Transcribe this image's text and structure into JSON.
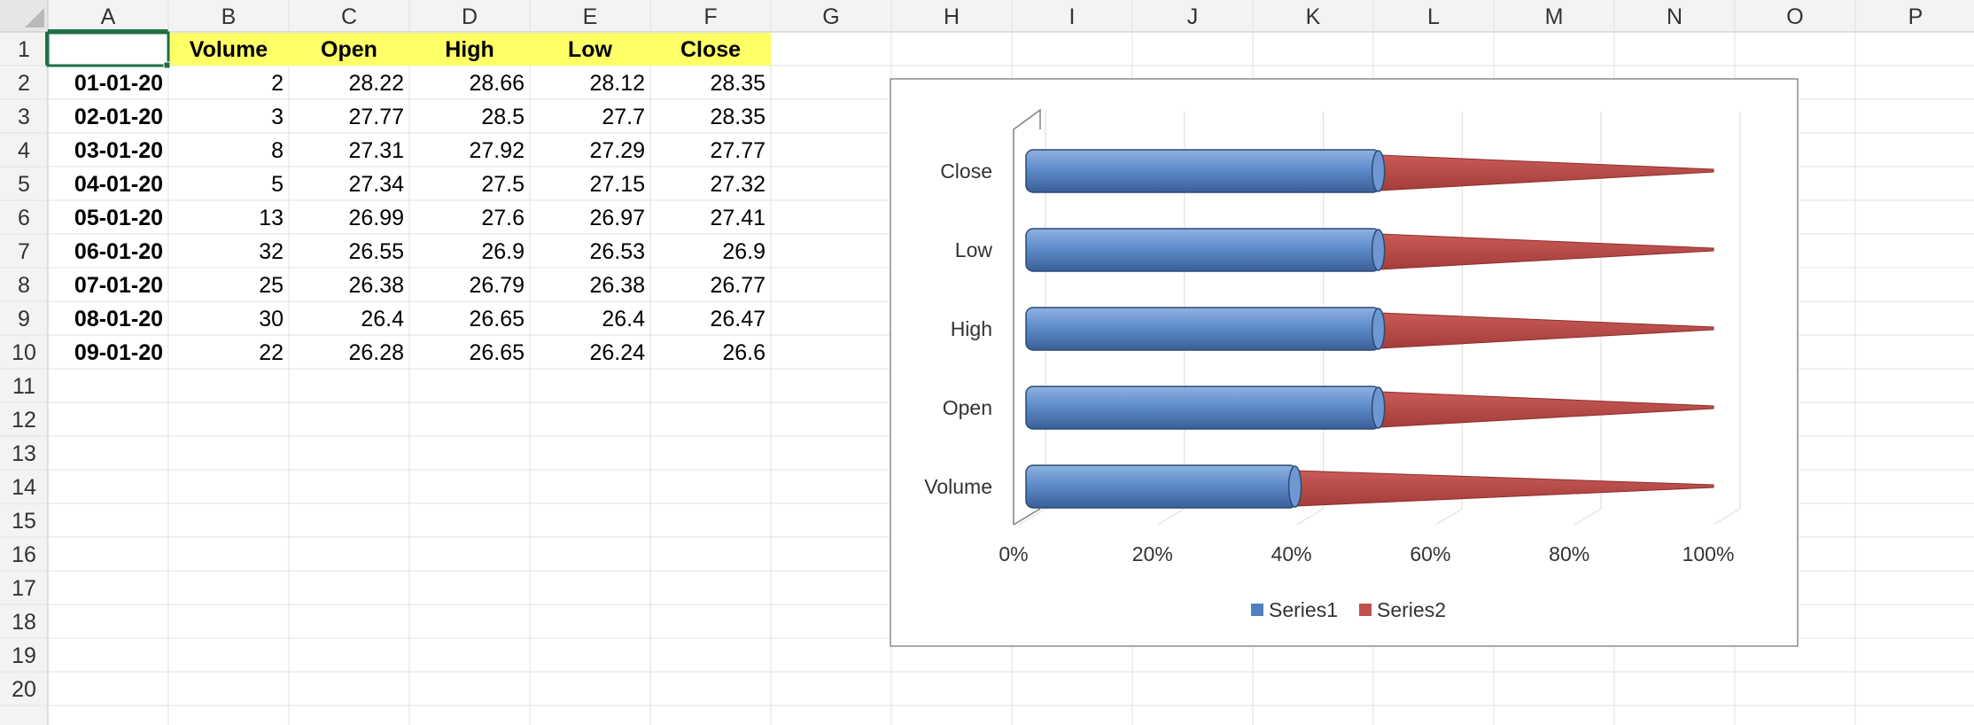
{
  "columns": [
    "A",
    "B",
    "C",
    "D",
    "E",
    "F",
    "G",
    "H",
    "I",
    "J",
    "K",
    "L",
    "M",
    "N",
    "O",
    "P"
  ],
  "rows": [
    "1",
    "2",
    "3",
    "4",
    "5",
    "6",
    "7",
    "8",
    "9",
    "10",
    "11",
    "12",
    "13",
    "14",
    "15",
    "16",
    "17",
    "18",
    "19",
    "20"
  ],
  "active_cell": "A1",
  "headers": [
    "",
    "Volume",
    "Open",
    "High",
    "Low",
    "Close"
  ],
  "header_fill": "#ffff66",
  "table": [
    [
      "01-01-20",
      "2",
      "28.22",
      "28.66",
      "28.12",
      "28.35"
    ],
    [
      "02-01-20",
      "3",
      "27.77",
      "28.5",
      "27.7",
      "28.35"
    ],
    [
      "03-01-20",
      "8",
      "27.31",
      "27.92",
      "27.29",
      "27.77"
    ],
    [
      "04-01-20",
      "5",
      "27.34",
      "27.5",
      "27.15",
      "27.32"
    ],
    [
      "05-01-20",
      "13",
      "26.99",
      "27.6",
      "26.97",
      "27.41"
    ],
    [
      "06-01-20",
      "32",
      "26.55",
      "26.9",
      "26.53",
      "26.9"
    ],
    [
      "07-01-20",
      "25",
      "26.38",
      "26.79",
      "26.38",
      "26.77"
    ],
    [
      "08-01-20",
      "30",
      "26.4",
      "26.65",
      "26.4",
      "26.47"
    ],
    [
      "09-01-20",
      "22",
      "26.28",
      "26.65",
      "26.24",
      "26.6"
    ]
  ],
  "chart_data": {
    "type": "bar",
    "stacked_100_percent": true,
    "categories": [
      "Volume",
      "Open",
      "High",
      "Low",
      "Close"
    ],
    "series": [
      {
        "name": "Series1",
        "values": [
          40,
          52,
          52,
          52,
          52
        ],
        "color": "#4f81bd"
      },
      {
        "name": "Series2",
        "values": [
          60,
          48,
          48,
          48,
          48
        ],
        "color": "#c0504d"
      }
    ],
    "x_ticks": [
      "0%",
      "20%",
      "40%",
      "60%",
      "80%",
      "100%"
    ],
    "xlim": [
      0,
      100
    ],
    "legend_position": "bottom",
    "grid": true
  }
}
